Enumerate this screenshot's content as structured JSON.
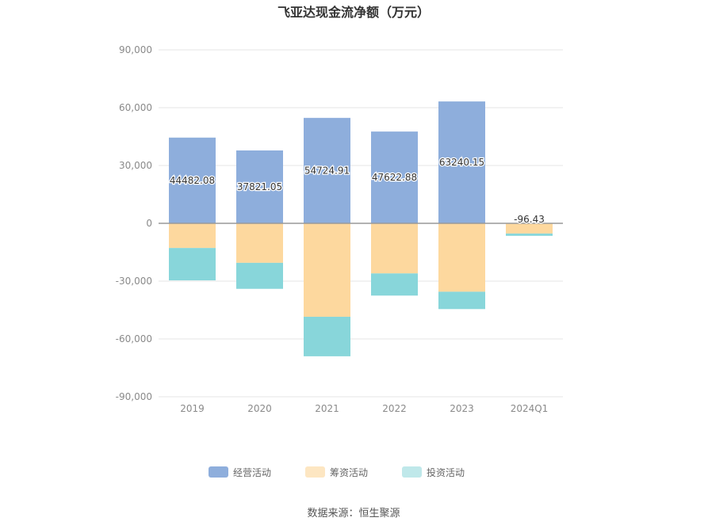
{
  "chart_data": {
    "type": "bar",
    "stacked": true,
    "title": "飞亚达现金流净额（万元）",
    "categories": [
      "2019",
      "2020",
      "2021",
      "2022",
      "2023",
      "2024Q1"
    ],
    "series": [
      {
        "name": "经营活动",
        "color": "#8eaedc",
        "values": [
          44482.08,
          37821.05,
          54724.91,
          47622.88,
          63240.15,
          -96.43
        ]
      },
      {
        "name": "筹资活动",
        "color": "#fdd89e",
        "values": [
          -12800,
          -20500,
          -48500,
          -26000,
          -35500,
          -5200
        ]
      },
      {
        "name": "投资活动",
        "color": "#88d6da",
        "values": [
          -16800,
          -13500,
          -20500,
          -11500,
          -9000,
          -1200
        ]
      }
    ],
    "data_labels": [
      "44482.08",
      "37821.05",
      "54724.91",
      "47622.88",
      "63240.15",
      "-96.43"
    ],
    "ylim": [
      -90000,
      90000
    ],
    "yticks": [
      90000,
      60000,
      30000,
      0,
      -30000,
      -60000,
      -90000
    ],
    "ytick_labels": [
      "90,000",
      "60,000",
      "30,000",
      "0",
      "-30,000",
      "-60,000",
      "-90,000"
    ],
    "grid": true,
    "legend_position": "bottom-center"
  },
  "source": "数据来源：恒生聚源"
}
